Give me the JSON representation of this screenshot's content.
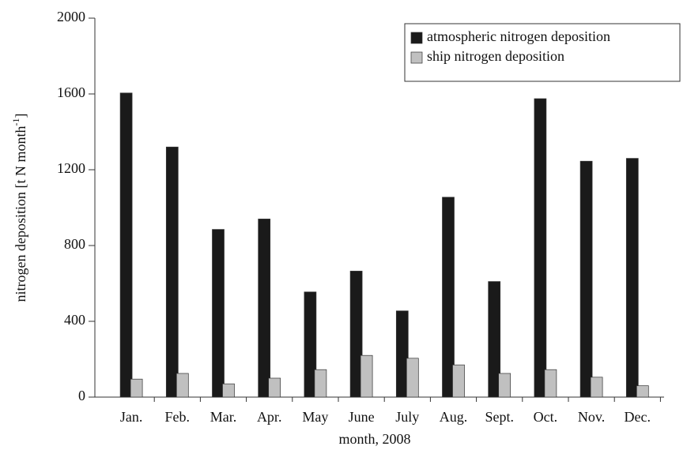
{
  "chart_data": {
    "type": "bar",
    "xlabel": "month, 2008",
    "ylabel": "nitrogen deposition [t N month",
    "ylabel_sup": "-1",
    "ylabel_end": "]",
    "categories": [
      "Jan.",
      "Feb.",
      "Mar.",
      "Apr.",
      "May",
      "June",
      "July",
      "Aug.",
      "Sept.",
      "Oct.",
      "Nov.",
      "Dec."
    ],
    "series": [
      {
        "name": "atmospheric nitrogen deposition",
        "color": "#1a1a1a",
        "values": [
          1605,
          1320,
          885,
          940,
          555,
          665,
          455,
          1055,
          610,
          1575,
          1245,
          1260
        ]
      },
      {
        "name": "ship nitrogen deposition",
        "color": "#c0c0c0",
        "values": [
          95,
          125,
          70,
          100,
          145,
          220,
          205,
          170,
          125,
          145,
          105,
          60
        ]
      }
    ],
    "ylim": [
      0,
      2000
    ],
    "yticks": [
      0,
      400,
      800,
      1200,
      1600,
      2000
    ],
    "grid": false,
    "legend": "top-right"
  }
}
